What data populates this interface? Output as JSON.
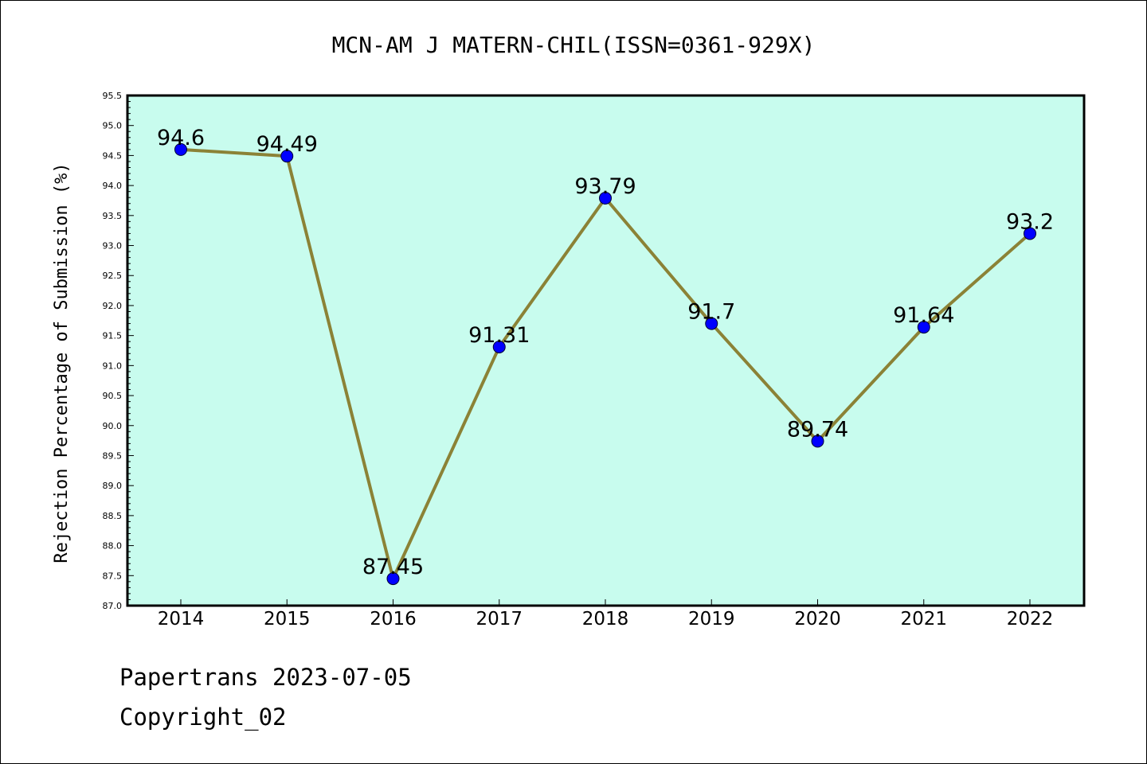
{
  "chart_data": {
    "type": "line",
    "title": "MCN-AM J MATERN-CHIL(ISSN=0361-929X)",
    "ylabel": "Rejection Percentage of Submission (%)",
    "xlabel": "",
    "categories": [
      "2014",
      "2015",
      "2016",
      "2017",
      "2018",
      "2019",
      "2020",
      "2021",
      "2022"
    ],
    "values": [
      94.6,
      94.49,
      87.45,
      91.31,
      93.79,
      91.7,
      89.74,
      91.64,
      93.2
    ],
    "data_labels": [
      "94.6",
      "94.49",
      "87.45",
      "91.31",
      "93.79",
      "91.7",
      "89.74",
      "91.64",
      "93.2"
    ],
    "ylim": [
      87.0,
      95.5
    ],
    "yticks": [
      "87.0",
      "87.5",
      "88.0",
      "88.5",
      "89.0",
      "89.5",
      "90.0",
      "90.5",
      "91.0",
      "91.5",
      "92.0",
      "92.5",
      "93.0",
      "93.5",
      "94.0",
      "94.5",
      "95.0",
      "95.5"
    ],
    "grid": false,
    "colors": {
      "plot_background": "#c8fcee",
      "line": "#8b8236",
      "marker": "#0000ff"
    }
  },
  "footer": {
    "line1": "Papertrans 2023-07-05",
    "line2": "Copyright_02"
  }
}
